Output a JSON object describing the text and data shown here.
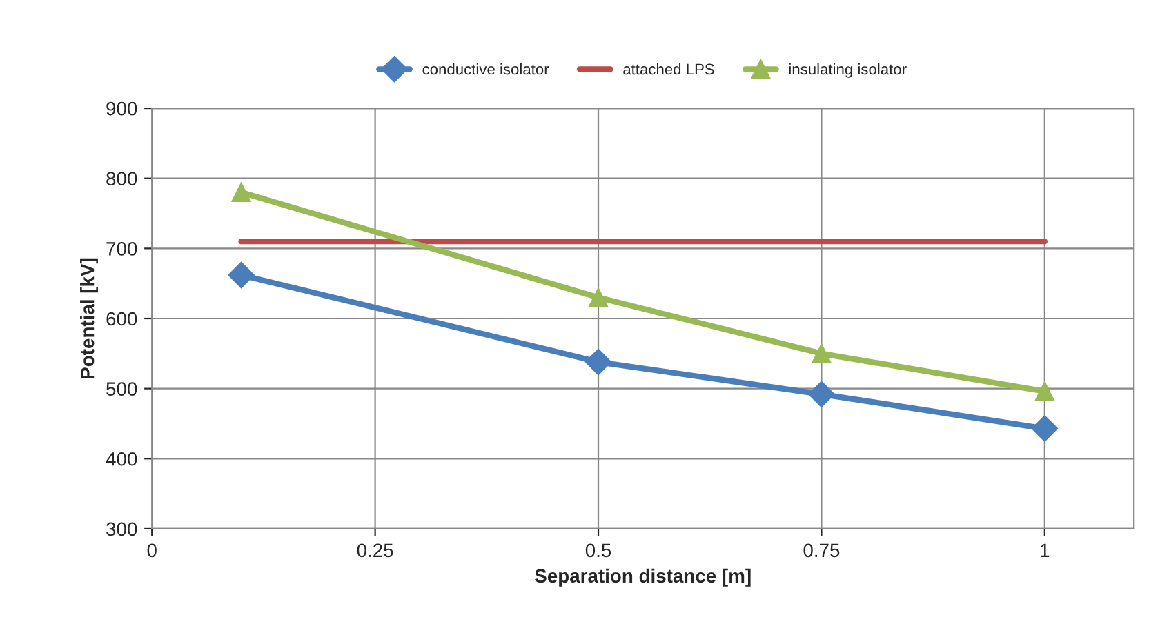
{
  "chart_data": {
    "type": "line",
    "xlabel": "Separation distance [m]",
    "ylabel": "Potential [kV]",
    "series": [
      {
        "name": "conductive isolator",
        "color": "#4a7ebb",
        "marker": "diamond",
        "x": [
          0.1,
          0.5,
          0.75,
          1
        ],
        "values": [
          662,
          538,
          492,
          443
        ]
      },
      {
        "name": "attached LPS",
        "color": "#be4b48",
        "marker": "none",
        "x": [
          0.1,
          1
        ],
        "values": [
          710,
          710
        ]
      },
      {
        "name": "insulating isolator",
        "color": "#98b954",
        "marker": "triangle",
        "x": [
          0.1,
          0.5,
          0.75,
          1
        ],
        "values": [
          780,
          630,
          550,
          496
        ]
      }
    ],
    "xlim": [
      0,
      1.1
    ],
    "xticks": [
      0,
      0.25,
      0.5,
      0.75,
      1
    ],
    "ylim": [
      300,
      900
    ],
    "yticks": [
      300,
      400,
      500,
      600,
      700,
      800,
      900
    ],
    "grid": true,
    "legend": "top",
    "line_style": "solid"
  }
}
